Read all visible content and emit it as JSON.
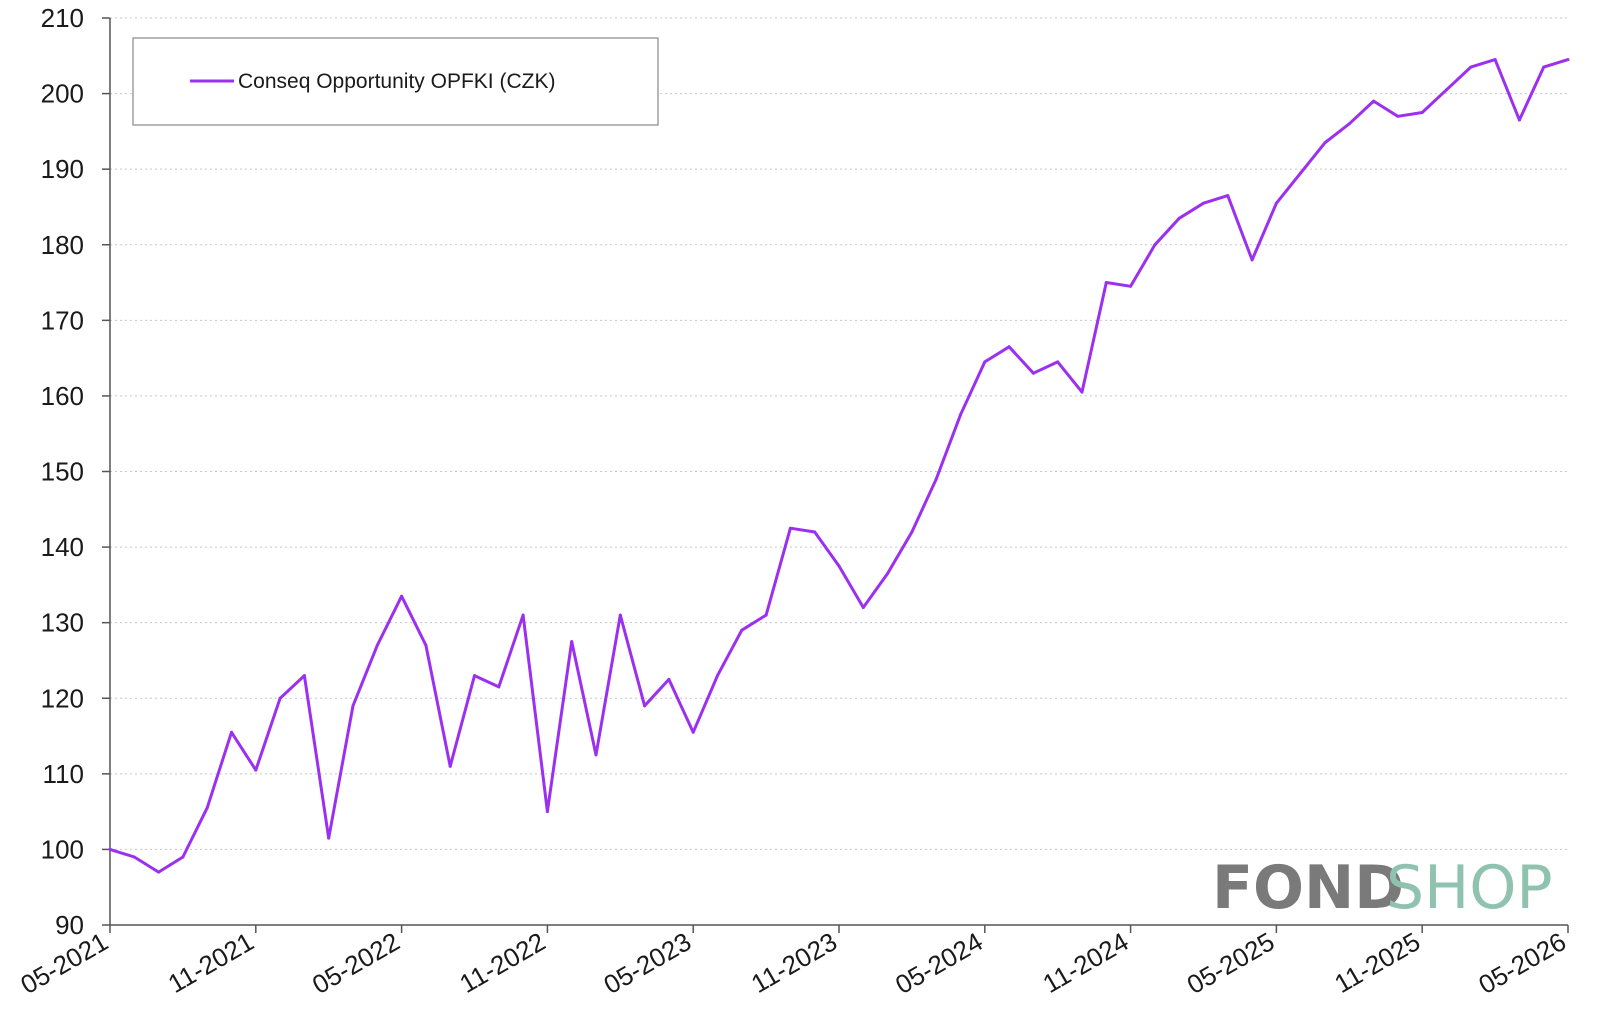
{
  "chart_data": {
    "type": "line",
    "title": "",
    "xlabel": "",
    "ylabel": "",
    "ylim": [
      90,
      210
    ],
    "yticks": [
      90,
      100,
      110,
      120,
      130,
      140,
      150,
      160,
      170,
      180,
      190,
      200,
      210
    ],
    "xtick_labels": [
      "05-2021",
      "11-2021",
      "05-2022",
      "11-2022",
      "05-2023",
      "11-2023",
      "05-2024",
      "11-2024",
      "05-2025",
      "11-2025",
      "05-2026"
    ],
    "grid": true,
    "legend_position": "top-left",
    "series": [
      {
        "name": "Conseq Opportunity OPFKI (CZK)",
        "color": "#9b30f0",
        "x": [
          "05-2021",
          "06-2021",
          "07-2021",
          "08-2021",
          "09-2021",
          "10-2021",
          "11-2021",
          "12-2021",
          "01-2022",
          "02-2022",
          "03-2022",
          "04-2022",
          "05-2022",
          "06-2022",
          "07-2022",
          "08-2022",
          "09-2022",
          "10-2022",
          "11-2022",
          "12-2022",
          "01-2023",
          "02-2023",
          "03-2023",
          "04-2023",
          "05-2023",
          "06-2023",
          "07-2023",
          "08-2023",
          "09-2023",
          "10-2023",
          "11-2023",
          "12-2023",
          "01-2024",
          "02-2024",
          "03-2024",
          "04-2024",
          "05-2024",
          "06-2024",
          "07-2024",
          "08-2024",
          "09-2024",
          "10-2024",
          "11-2024",
          "12-2024",
          "01-2025",
          "02-2025",
          "03-2025",
          "04-2025",
          "05-2025",
          "06-2025",
          "07-2025",
          "08-2025",
          "09-2025",
          "10-2025",
          "11-2025",
          "12-2025",
          "01-2026",
          "02-2026",
          "03-2026",
          "04-2026",
          "05-2026"
        ],
        "values": [
          100,
          99,
          97,
          99,
          105.5,
          115.5,
          110.5,
          120,
          123,
          101.5,
          119,
          127,
          133.5,
          127,
          111,
          123,
          121.5,
          131,
          105,
          127.5,
          112.5,
          131,
          119,
          122.5,
          115.5,
          123,
          129,
          131,
          142.5,
          142,
          137.5,
          132,
          136.5,
          142,
          149,
          157.5,
          164.5,
          166.5,
          163,
          164.5,
          160.5,
          175,
          174.5,
          180,
          183.5,
          185.5,
          186.5,
          178,
          185.5,
          189.5,
          193.5,
          196,
          199,
          197,
          197.5,
          200.5,
          203.5,
          204.5,
          196.5,
          203.5,
          204.5
        ]
      }
    ]
  },
  "logo": {
    "part1": "FOND",
    "part2": "SHOP",
    "color1": "#7a7a7a",
    "color2": "#8fc3b0"
  }
}
